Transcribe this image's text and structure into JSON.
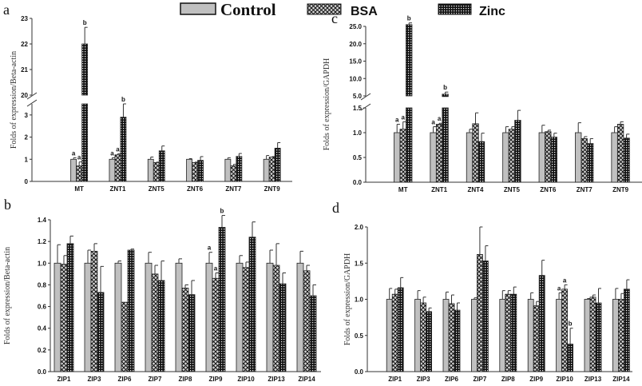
{
  "legend": {
    "items": [
      {
        "label": "Control",
        "pattern": "solid-grey"
      },
      {
        "label": "BSA",
        "pattern": "crosshatch"
      },
      {
        "label": "Zinc",
        "pattern": "checker"
      }
    ]
  },
  "colors": {
    "control": "#c0c0c0",
    "axis": "#333333",
    "bar_stroke": "#222222"
  },
  "chart_data": [
    {
      "panel": "a",
      "type": "bar",
      "ylabel": "Folds of expression/Beta-actin",
      "categories": [
        "MT",
        "ZNT1",
        "ZNT5",
        "ZNT6",
        "ZNT7",
        "ZNT9"
      ],
      "axis_break": true,
      "lower_range": [
        0,
        3.5
      ],
      "lower_ticks": [
        "0",
        "1",
        "2",
        "3"
      ],
      "upper_range": [
        20,
        23
      ],
      "upper_ticks": [
        "20",
        "21",
        "22",
        "23"
      ],
      "series": [
        {
          "name": "Control",
          "values": [
            1,
            1,
            1,
            1,
            1,
            1
          ],
          "errors": [
            0.07,
            0.07,
            0.1,
            0.03,
            0.07,
            0.17
          ],
          "sig": [
            "a",
            "a",
            "",
            "",
            "",
            ""
          ]
        },
        {
          "name": "BSA",
          "values": [
            0.7,
            1.2,
            0.85,
            0.85,
            0.7,
            1.1
          ],
          "errors": [
            0.18,
            0.05,
            0.02,
            0.02,
            0.07,
            0.02
          ],
          "sig": [
            "a",
            "a",
            "",
            "",
            "",
            ""
          ]
        },
        {
          "name": "Zinc",
          "values": [
            22,
            2.9,
            1.38,
            0.95,
            1.13,
            1.5
          ],
          "errors": [
            0.65,
            0.6,
            0.22,
            0.17,
            0.13,
            0.25
          ],
          "sig": [
            "b",
            "b",
            "",
            "",
            "",
            ""
          ]
        }
      ]
    },
    {
      "panel": "c",
      "type": "bar",
      "ylabel": "Folds of expression/GAPDH",
      "categories": [
        "MT",
        "ZNT1",
        "ZNT4",
        "ZNT5",
        "ZNT6",
        "ZNT7",
        "ZNT9"
      ],
      "axis_break": true,
      "lower_range": [
        0,
        1.5
      ],
      "lower_ticks": [
        "0.0",
        "0.5",
        "1.0",
        "1.5"
      ],
      "upper_range": [
        5,
        25
      ],
      "upper_ticks": [
        "5.0",
        "10.0",
        "15.0",
        "20.0",
        "25.0"
      ],
      "series": [
        {
          "name": "Control",
          "values": [
            1,
            1,
            1,
            1,
            1,
            1,
            1
          ],
          "errors": [
            0.17,
            0.12,
            0.07,
            0.12,
            0.15,
            0.2,
            0.12
          ],
          "sig": [
            "a",
            "a",
            "",
            "",
            "",
            "",
            ""
          ]
        },
        {
          "name": "BSA",
          "values": [
            1.07,
            1.17,
            1.18,
            1.07,
            1.02,
            0.88,
            1.17
          ],
          "errors": [
            0.15,
            0.02,
            0.22,
            0.05,
            0.03,
            0.04,
            0.05
          ],
          "sig": [
            "a",
            "a",
            "",
            "",
            "",
            "",
            ""
          ]
        },
        {
          "name": "Zinc",
          "values": [
            25.5,
            5.5,
            0.82,
            1.25,
            0.91,
            0.78,
            0.89
          ],
          "errors": [
            0.5,
            0.6,
            0.17,
            0.2,
            0.08,
            0.1,
            0.08
          ],
          "sig": [
            "b",
            "b",
            "",
            "",
            "",
            "",
            ""
          ]
        }
      ]
    },
    {
      "panel": "b",
      "type": "bar",
      "ylabel": "Folds of expression/Beta-actin",
      "categories": [
        "ZIP1",
        "ZIP3",
        "ZIP6",
        "ZIP7",
        "ZIP8",
        "ZIP9",
        "ZIP10",
        "ZIP13",
        "ZIP14"
      ],
      "axis_break": false,
      "lower_range": [
        0,
        1.4
      ],
      "lower_ticks": [
        "0.0",
        "0.2",
        "0.4",
        "0.6",
        "0.8",
        "1.0",
        "1.2",
        "1.4"
      ],
      "series": [
        {
          "name": "Control",
          "values": [
            1,
            1,
            1,
            1,
            1,
            1,
            1,
            1,
            1
          ],
          "errors": [
            0.17,
            0.12,
            0.02,
            0.1,
            0.04,
            0.1,
            0.07,
            0.12,
            0.11
          ],
          "sig": [
            "",
            "",
            "",
            "",
            "",
            "a",
            "",
            "",
            ""
          ]
        },
        {
          "name": "BSA",
          "values": [
            0.99,
            1.11,
            0.64,
            0.9,
            0.77,
            0.86,
            0.96,
            0.98,
            0.93
          ],
          "errors": [
            0.08,
            0.07,
            0,
            0.08,
            0.03,
            0.05,
            0.05,
            0.2,
            0.05
          ],
          "sig": [
            "",
            "",
            "",
            "",
            "",
            "a",
            "",
            "",
            ""
          ]
        },
        {
          "name": "Zinc",
          "values": [
            1.18,
            0.73,
            1.12,
            0.84,
            0.71,
            1.33,
            1.24,
            0.81,
            0.7
          ],
          "errors": [
            0.07,
            0.24,
            0.01,
            0.18,
            0.13,
            0.11,
            0.14,
            0.1,
            0.1
          ],
          "sig": [
            "",
            "",
            "",
            "",
            "",
            "b",
            "",
            "",
            ""
          ]
        }
      ]
    },
    {
      "panel": "d",
      "type": "bar",
      "ylabel": "Folds of expression/GAPDH",
      "categories": [
        "ZIP1",
        "ZIP3",
        "ZIP6",
        "ZIP7",
        "ZIP8",
        "ZIP9",
        "ZIP10",
        "ZIP13",
        "ZIP14"
      ],
      "axis_break": false,
      "lower_range": [
        0,
        2.0
      ],
      "lower_ticks": [
        "0.0",
        "0.5",
        "1.0",
        "1.5",
        "2.0"
      ],
      "series": [
        {
          "name": "Control",
          "values": [
            1,
            1,
            1,
            1,
            1,
            1,
            1,
            1,
            1
          ],
          "errors": [
            0.15,
            0.12,
            0.1,
            0.02,
            0.12,
            0.09,
            0.09,
            0.01,
            0.15
          ],
          "sig": [
            "",
            "",
            "",
            "",
            "",
            "",
            "a",
            "",
            ""
          ]
        },
        {
          "name": "BSA",
          "values": [
            1.07,
            0.95,
            0.94,
            1.62,
            1.07,
            0.91,
            1.14,
            1.03,
            1.0
          ],
          "errors": [
            0.07,
            0.08,
            0.12,
            0.38,
            0.05,
            0.06,
            0.06,
            0.03,
            0.08
          ],
          "sig": [
            "",
            "",
            "",
            "",
            "",
            "",
            "a",
            "",
            ""
          ]
        },
        {
          "name": "Zinc",
          "values": [
            1.16,
            0.83,
            0.85,
            1.53,
            1.07,
            1.33,
            0.38,
            0.95,
            1.14
          ],
          "errors": [
            0.14,
            0.05,
            0.1,
            0.21,
            0.1,
            0.21,
            0.22,
            0.2,
            0.13
          ],
          "sig": [
            "",
            "",
            "",
            "",
            "",
            "",
            "b",
            "",
            ""
          ]
        }
      ]
    }
  ]
}
